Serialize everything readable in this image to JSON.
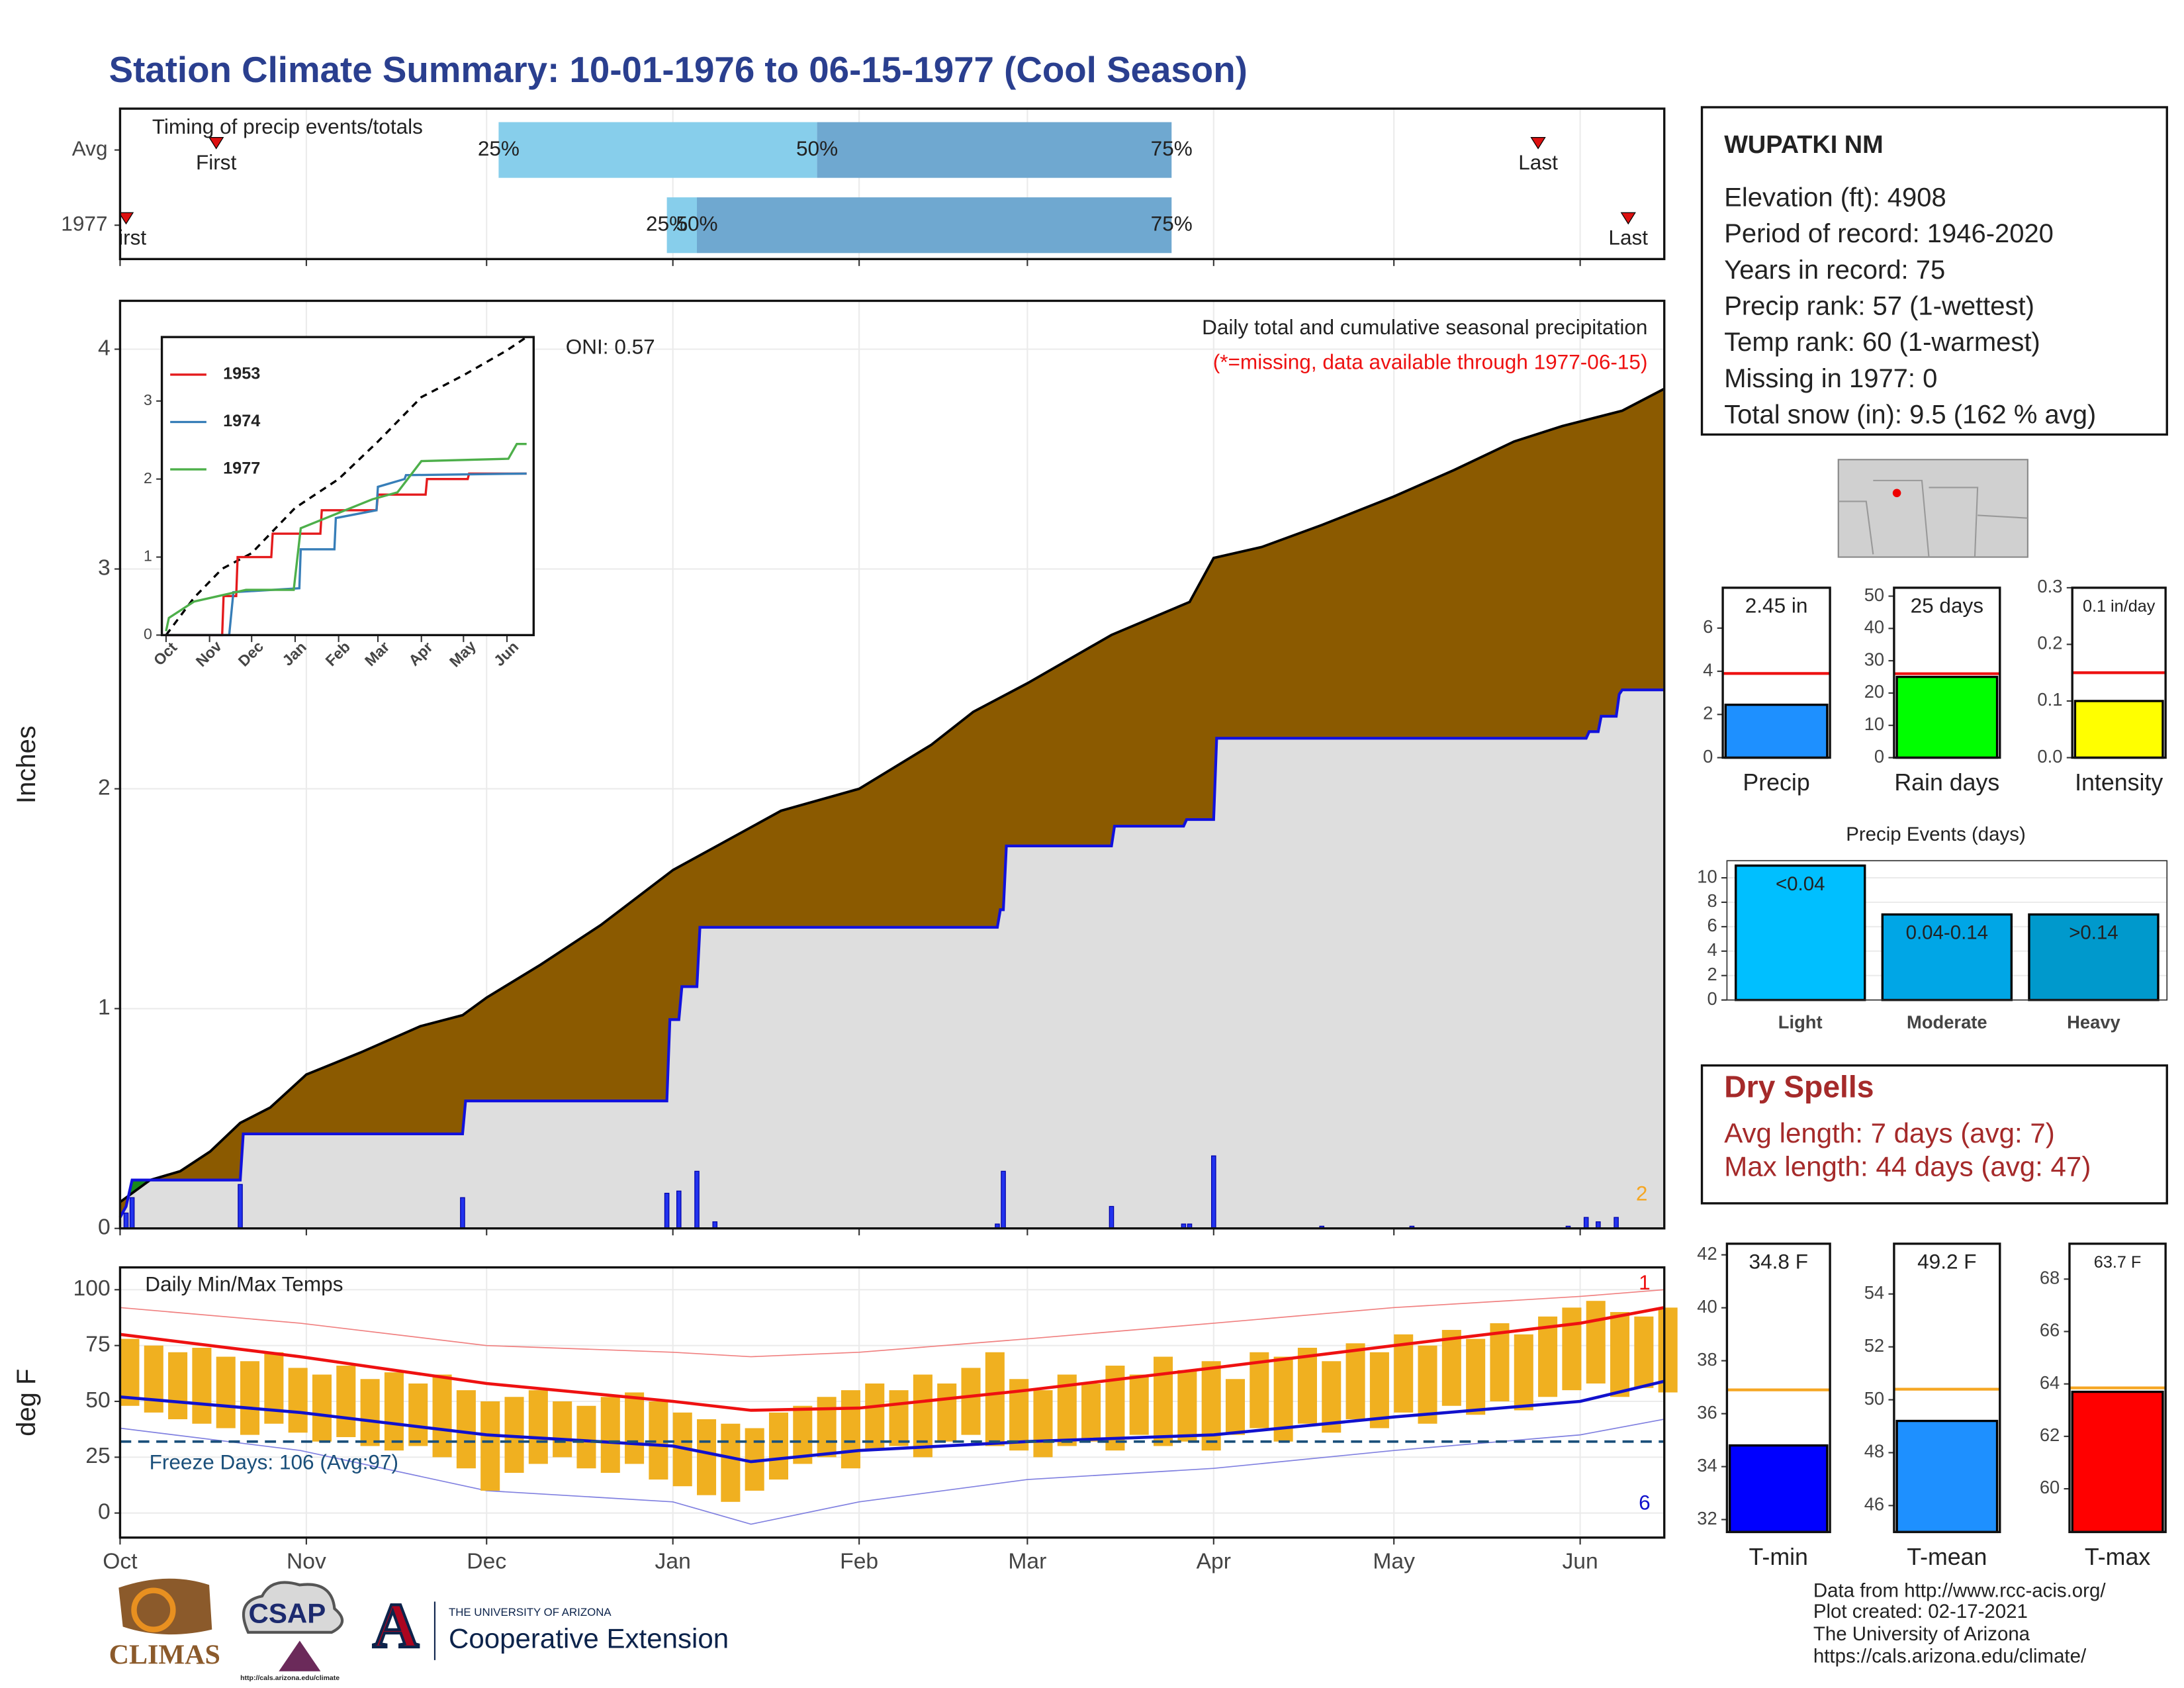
{
  "title": "Station Climate Summary: 10-01-1976 to 06-15-1977 (Cool Season)",
  "chart_data": [
    {
      "type": "timing",
      "title": "Timing of precip events/totals",
      "categories": [
        "Avg",
        "1977"
      ],
      "quartiles": [
        [
          63,
          116,
          175
        ],
        [
          91,
          96,
          175
        ]
      ],
      "quartile_labels": [
        "25%",
        "50%",
        "75%"
      ],
      "first": [
        16,
        1
      ],
      "last": [
        236,
        251
      ],
      "first_label": "First",
      "last_label": "Last",
      "colors": [
        "#87ceeb",
        "#6fa8d0"
      ],
      "marker_color": "#dd1111",
      "xlim": [
        0,
        257
      ],
      "xticks": [
        0,
        31,
        61,
        92,
        123,
        151,
        182,
        212,
        243
      ],
      "grid": true
    },
    {
      "type": "area",
      "title": "Daily total and cumulative seasonal precipitation",
      "subtitle": "(*=missing, data available through 1977-06-15)",
      "annotation": "ONI: 0.57",
      "corner_note": "2",
      "ylabel": "Inches",
      "xlim": [
        0,
        257
      ],
      "ylim": [
        0,
        4.22
      ],
      "yticks": [
        0,
        1,
        2,
        3,
        4
      ],
      "xticks": [
        0,
        31,
        61,
        92,
        123,
        151,
        182,
        212,
        243
      ],
      "grid": true,
      "average": {
        "color": "#8b5a00",
        "x": [
          0,
          5,
          10,
          15,
          20,
          25,
          31,
          40,
          50,
          57,
          61,
          70,
          80,
          92,
          100,
          110,
          123,
          135,
          142,
          151,
          165,
          178,
          182,
          190,
          200,
          212,
          222,
          232,
          240,
          250,
          257
        ],
        "values": [
          0.12,
          0.22,
          0.26,
          0.35,
          0.48,
          0.55,
          0.7,
          0.8,
          0.92,
          0.97,
          1.05,
          1.2,
          1.38,
          1.63,
          1.75,
          1.9,
          2.0,
          2.2,
          2.35,
          2.48,
          2.7,
          2.85,
          3.05,
          3.1,
          3.2,
          3.33,
          3.45,
          3.58,
          3.65,
          3.72,
          3.82
        ]
      },
      "cumulative": {
        "color": "#1111dd",
        "above_color": "#1a8a1a",
        "below_color": "#dedede",
        "x": [
          0,
          1,
          2,
          20,
          20.5,
          57,
          57.5,
          91,
          91.5,
          93,
          93.5,
          96,
          96.5,
          146,
          146.5,
          147,
          147.5,
          165,
          165.5,
          177,
          177.5,
          182,
          182.5,
          244,
          244.5,
          246,
          246.5,
          249,
          249.5,
          250,
          257
        ],
        "values": [
          0.05,
          0.1,
          0.22,
          0.22,
          0.43,
          0.43,
          0.58,
          0.58,
          0.95,
          0.95,
          1.1,
          1.1,
          1.37,
          1.37,
          1.45,
          1.45,
          1.74,
          1.74,
          1.83,
          1.83,
          1.86,
          1.86,
          2.23,
          2.23,
          2.26,
          2.26,
          2.33,
          2.33,
          2.43,
          2.45,
          2.45
        ]
      },
      "daily": {
        "color": "#2233ee",
        "x": [
          1,
          2,
          20,
          57,
          91,
          93,
          96,
          99,
          146,
          147,
          165,
          177,
          178,
          182,
          200,
          215,
          241,
          244,
          246,
          249
        ],
        "values": [
          0.07,
          0.14,
          0.2,
          0.14,
          0.16,
          0.17,
          0.26,
          0.03,
          0.02,
          0.26,
          0.1,
          0.02,
          0.02,
          0.33,
          0.01,
          0.01,
          0.01,
          0.05,
          0.03,
          0.05
        ]
      }
    },
    {
      "type": "line",
      "xlim": [
        -3,
        262
      ],
      "ylim": [
        0,
        3.82
      ],
      "yticks": [
        0,
        1,
        2,
        3
      ],
      "xticks": [
        {
          "value": 0,
          "label": "Oct"
        },
        {
          "value": 31,
          "label": "Nov"
        },
        {
          "value": 61,
          "label": "Dec"
        },
        {
          "value": 92,
          "label": "Jan"
        },
        {
          "value": 123,
          "label": "Feb"
        },
        {
          "value": 151,
          "label": "Mar"
        },
        {
          "value": 182,
          "label": "Apr"
        },
        {
          "value": 212,
          "label": "May"
        },
        {
          "value": 243,
          "label": "Jun"
        }
      ],
      "series": [
        {
          "name": "1953",
          "color": "#e41a1c",
          "x": [
            0,
            40,
            41,
            50,
            51,
            75,
            76,
            110,
            111,
            150,
            151,
            185,
            186,
            215,
            216,
            257
          ],
          "values": [
            0,
            0,
            0.5,
            0.5,
            1.0,
            1.0,
            1.3,
            1.3,
            1.6,
            1.6,
            1.8,
            1.8,
            2.0,
            2.0,
            2.07,
            2.07
          ]
        },
        {
          "name": "1974",
          "color": "#377eb8",
          "x": [
            0,
            45,
            48,
            95,
            96,
            120,
            121,
            150,
            151,
            170,
            171,
            257
          ],
          "values": [
            0,
            0,
            0.55,
            0.6,
            1.1,
            1.1,
            1.5,
            1.6,
            1.9,
            2.0,
            2.05,
            2.07
          ]
        },
        {
          "name": "1977",
          "color": "#4daf4a",
          "x": [
            0,
            2,
            20,
            57,
            91,
            96,
            147,
            165,
            182,
            244,
            250,
            257
          ],
          "values": [
            0.05,
            0.22,
            0.43,
            0.58,
            0.58,
            1.37,
            1.74,
            1.83,
            2.23,
            2.26,
            2.45,
            2.45
          ]
        }
      ],
      "average": {
        "color": "#000000",
        "x": [
          0,
          20,
          40,
          61,
          92,
          123,
          151,
          182,
          212,
          243,
          257
        ],
        "values": [
          0,
          0.48,
          0.85,
          1.05,
          1.63,
          2.0,
          2.48,
          3.05,
          3.33,
          3.65,
          3.82
        ]
      }
    },
    {
      "type": "temp",
      "title": "Daily Min/Max Temps",
      "ylabel": "deg F",
      "annotation": "Freeze Days: 106 (Avg:97)",
      "corner_high": "1",
      "corner_low": "6",
      "xlim": [
        0,
        257
      ],
      "ylim": [
        -11,
        110
      ],
      "yticks": [
        0,
        25,
        50,
        75,
        100
      ],
      "grid": true,
      "xticks": [
        {
          "value": 0,
          "label": "Oct"
        },
        {
          "value": 31,
          "label": "Nov"
        },
        {
          "value": 61,
          "label": "Dec"
        },
        {
          "value": 92,
          "label": "Jan"
        },
        {
          "value": 123,
          "label": "Feb"
        },
        {
          "value": 151,
          "label": "Mar"
        },
        {
          "value": 182,
          "label": "Apr"
        },
        {
          "value": 212,
          "label": "May"
        },
        {
          "value": 243,
          "label": "Jun"
        }
      ],
      "bar_color": "#f0b020",
      "freeze_line": 32,
      "freeze_color": "#1a4f7a",
      "x": [
        0,
        4,
        8,
        12,
        16,
        20,
        24,
        28,
        32,
        36,
        40,
        44,
        48,
        52,
        56,
        60,
        64,
        68,
        72,
        76,
        80,
        84,
        88,
        92,
        96,
        100,
        104,
        108,
        112,
        116,
        120,
        124,
        128,
        132,
        136,
        140,
        144,
        148,
        152,
        156,
        160,
        164,
        168,
        172,
        176,
        180,
        184,
        188,
        192,
        196,
        200,
        204,
        208,
        212,
        216,
        220,
        224,
        228,
        232,
        236,
        240,
        244,
        248,
        252,
        256
      ],
      "max": [
        78,
        75,
        72,
        74,
        70,
        68,
        72,
        65,
        62,
        66,
        60,
        63,
        58,
        62,
        55,
        50,
        52,
        55,
        50,
        48,
        52,
        54,
        50,
        45,
        42,
        40,
        38,
        45,
        48,
        52,
        55,
        58,
        55,
        62,
        58,
        65,
        72,
        60,
        55,
        62,
        58,
        66,
        62,
        70,
        64,
        68,
        60,
        72,
        70,
        74,
        68,
        76,
        72,
        80,
        75,
        82,
        78,
        85,
        80,
        88,
        92,
        95,
        90,
        88,
        92
      ],
      "min": [
        48,
        45,
        42,
        40,
        38,
        35,
        40,
        36,
        32,
        34,
        30,
        28,
        30,
        25,
        20,
        10,
        18,
        22,
        25,
        20,
        18,
        22,
        15,
        12,
        8,
        5,
        10,
        15,
        22,
        25,
        20,
        28,
        30,
        25,
        32,
        35,
        30,
        28,
        25,
        30,
        32,
        28,
        35,
        30,
        32,
        28,
        35,
        38,
        32,
        40,
        36,
        42,
        38,
        45,
        40,
        48,
        44,
        50,
        46,
        52,
        55,
        58,
        52,
        56,
        54
      ],
      "normal_max": {
        "color": "#ee1111",
        "x": [
          0,
          30,
          61,
          92,
          105,
          123,
          151,
          182,
          212,
          243,
          257
        ],
        "values": [
          80,
          70,
          58,
          50,
          46,
          47,
          55,
          65,
          75,
          85,
          92
        ]
      },
      "normal_min": {
        "color": "#1111cc",
        "x": [
          0,
          30,
          61,
          92,
          105,
          123,
          151,
          182,
          212,
          243,
          257
        ],
        "values": [
          52,
          45,
          35,
          30,
          23,
          28,
          32,
          35,
          43,
          50,
          59
        ]
      },
      "record_high": {
        "color": "#f08080",
        "x": [
          0,
          30,
          61,
          92,
          105,
          123,
          151,
          182,
          212,
          243,
          257
        ],
        "values": [
          92,
          85,
          75,
          72,
          70,
          72,
          78,
          85,
          92,
          97,
          100
        ]
      },
      "record_low": {
        "color": "#8080e0",
        "x": [
          0,
          30,
          61,
          92,
          105,
          123,
          151,
          182,
          212,
          243,
          257
        ],
        "values": [
          38,
          28,
          10,
          5,
          -5,
          5,
          15,
          20,
          28,
          35,
          42
        ]
      }
    },
    {
      "type": "gauge",
      "categories": [
        "Precip"
      ],
      "values": [
        2.45
      ],
      "value_labels": [
        "2.45 in"
      ],
      "normal": 3.9,
      "color": "#1e90ff",
      "normal_color": "#ee1111",
      "ylim": [
        0,
        7.87
      ],
      "yticks": [
        0,
        2,
        4,
        6
      ]
    },
    {
      "type": "gauge",
      "categories": [
        "Rain days"
      ],
      "values": [
        25
      ],
      "value_labels": [
        "25 days"
      ],
      "normal": 26,
      "color": "#00ff00",
      "normal_color": "#ee1111",
      "ylim": [
        0,
        52.6
      ],
      "yticks": [
        0,
        10,
        20,
        30,
        40,
        50
      ]
    },
    {
      "type": "gauge",
      "categories": [
        "Intensity"
      ],
      "values": [
        0.1
      ],
      "value_labels": [
        "0.1 in/day"
      ],
      "normal": 0.15,
      "color": "#ffff00",
      "normal_color": "#ee1111",
      "ylim": [
        0,
        0.3
      ],
      "yticks": [
        {
          "value": 0,
          "label": "0.0"
        },
        0.1,
        0.2,
        0.3
      ]
    },
    {
      "type": "bar",
      "title": "Precip Events (days)",
      "categories": [
        "Light",
        "Moderate",
        "Heavy"
      ],
      "values": [
        11,
        7,
        7
      ],
      "bin_labels": [
        "<0.04",
        "0.04-0.14",
        ">0.14"
      ],
      "colors": [
        "#00bfff",
        "#00a6e6",
        "#0099cc"
      ],
      "ylim": [
        0,
        11.4
      ],
      "yticks": [
        0,
        2,
        4,
        6,
        8,
        10
      ],
      "grid": true
    },
    {
      "type": "gauge",
      "categories": [
        "T-min"
      ],
      "values": [
        34.8
      ],
      "value_labels": [
        "34.8 F"
      ],
      "normal": 36.9,
      "color": "#0000ff",
      "normal_color": "#f5a623",
      "ylim": [
        31.53,
        42.42
      ],
      "yticks": [
        32,
        34,
        36,
        38,
        40,
        42
      ]
    },
    {
      "type": "gauge",
      "categories": [
        "T-mean"
      ],
      "values": [
        49.2
      ],
      "value_labels": [
        "49.2 F"
      ],
      "normal": 50.4,
      "color": "#1e90ff",
      "normal_color": "#f5a623",
      "ylim": [
        45.0,
        55.9
      ],
      "yticks": [
        46,
        48,
        50,
        52,
        54
      ]
    },
    {
      "type": "gauge",
      "categories": [
        "T-max"
      ],
      "values": [
        63.7
      ],
      "value_labels": [
        "63.7 F"
      ],
      "normal": 63.85,
      "color": "#ff0000",
      "normal_color": "#f5a623",
      "ylim": [
        58.35,
        69.35
      ],
      "yticks": [
        60,
        62,
        64,
        66,
        68
      ]
    }
  ],
  "station": {
    "name": "WUPATKI NM",
    "lines": [
      "Elevation (ft): 4908",
      "Period of record: 1946-2020",
      "Years in record: 75",
      "Precip rank: 57 (1-wettest)",
      "Temp rank: 60 (1-warmest)",
      "Missing in 1977: 0",
      "Total snow (in): 9.5 (162 % avg)"
    ]
  },
  "dry_spells": {
    "title": "Dry Spells",
    "lines": [
      "Avg length: 7 days (avg: 7)",
      "Max length: 44 days (avg: 47)"
    ]
  },
  "footer": [
    "Data from http://www.rcc-acis.org/",
    "Plot created: 02-17-2021",
    "The University of Arizona",
    "https://cals.arizona.edu/climate/"
  ],
  "logos": {
    "climas": "CLIMAS",
    "csap": "CSAP",
    "csap_url": "http://cals.arizona.edu/climate",
    "arizona_mark": "A",
    "university": "THE UNIVERSITY OF ARIZONA",
    "extension": "Cooperative Extension"
  }
}
